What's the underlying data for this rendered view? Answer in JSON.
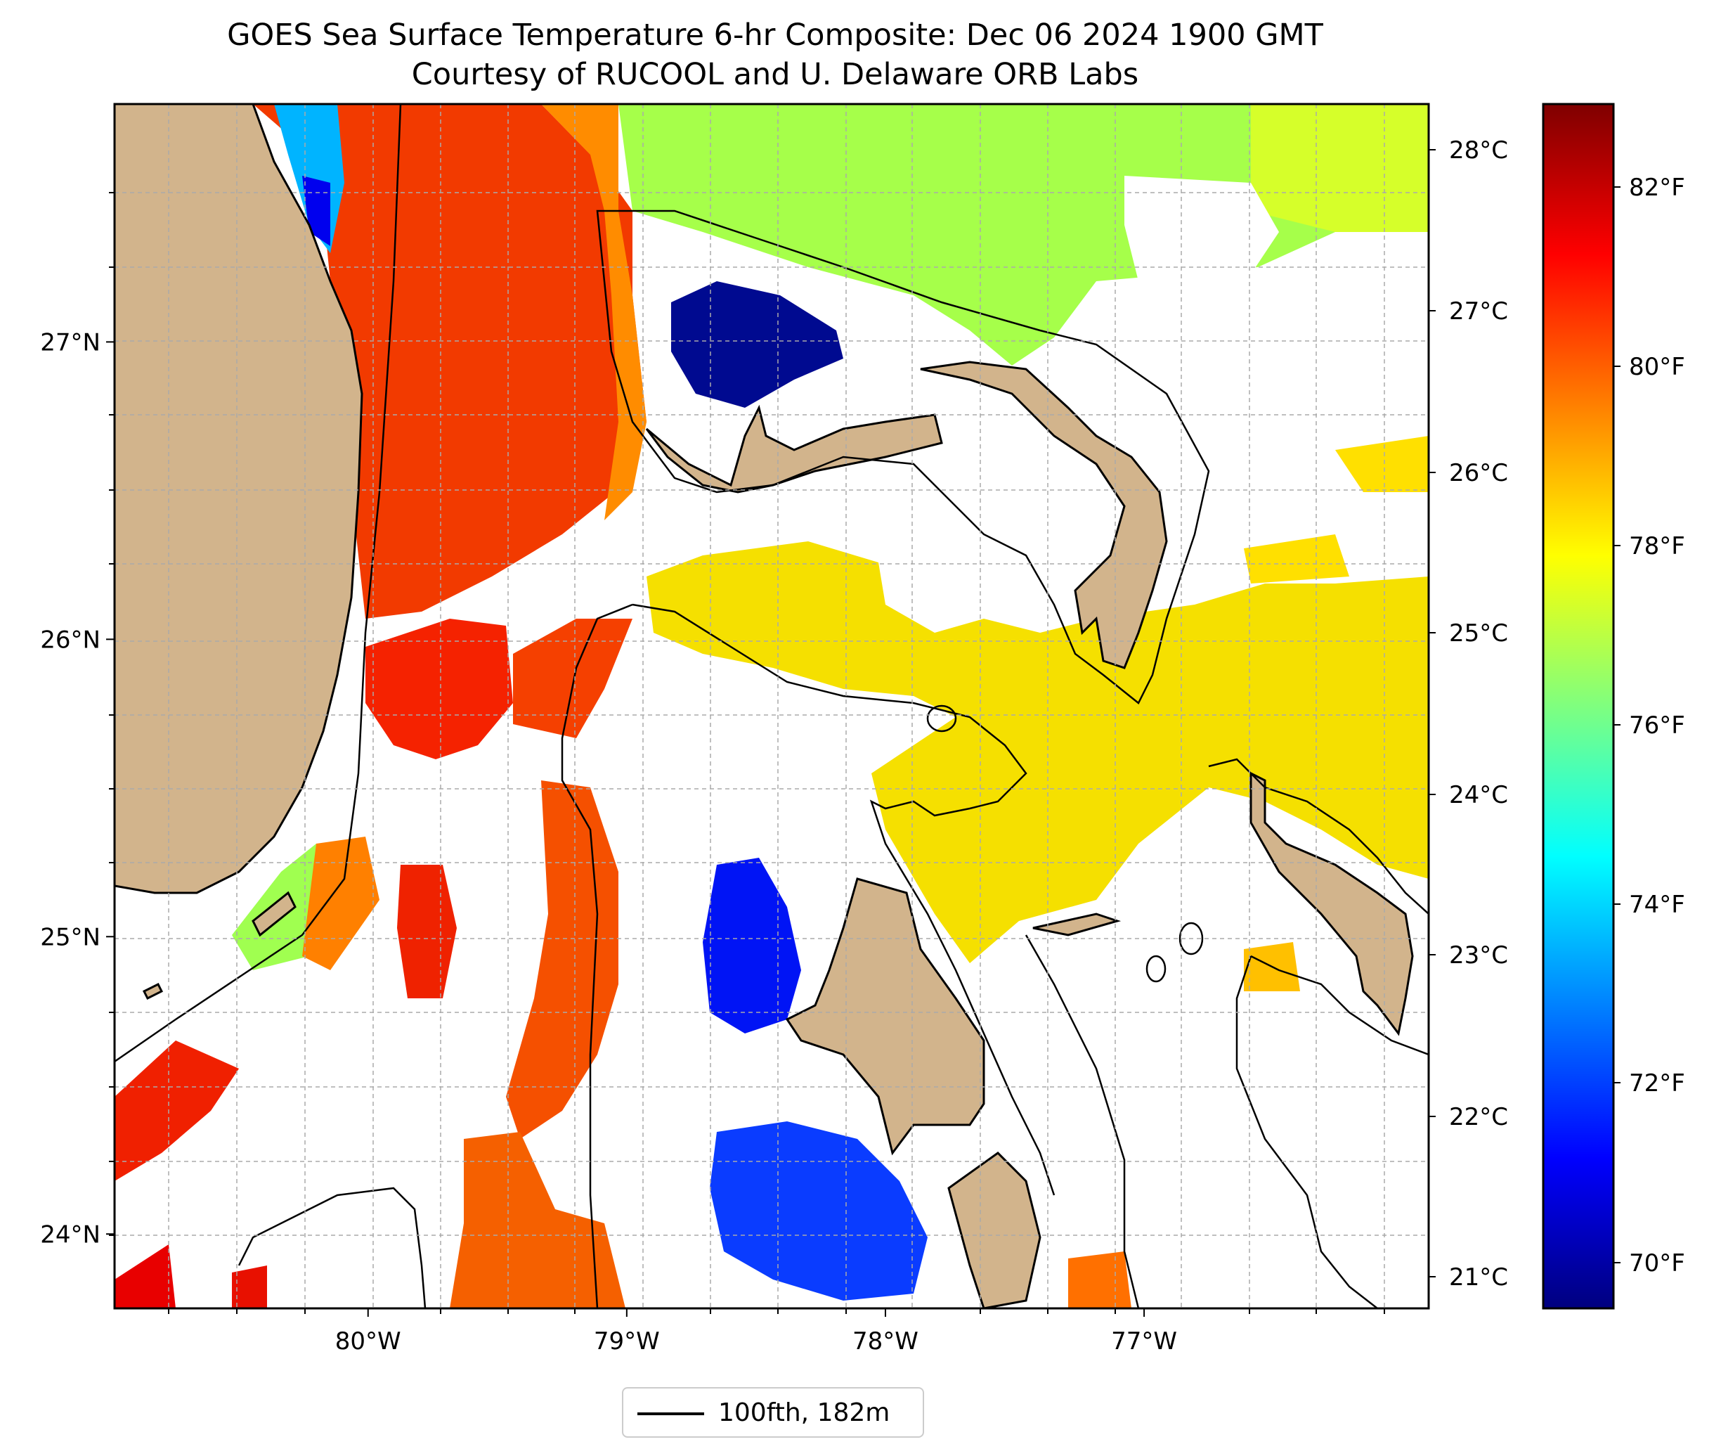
{
  "title": {
    "line1": "GOES Sea Surface Temperature 6-hr Composite: Dec 06 2024 1900 GMT",
    "line2": "Courtesy of RUCOOL and U. Delaware ORB Labs"
  },
  "map": {
    "lon_range": [
      -80.98,
      -75.9
    ],
    "lat_range": [
      23.75,
      27.8
    ],
    "lon_ticks": [
      {
        "value": -80,
        "label": "80°W"
      },
      {
        "value": -79,
        "label": "79°W"
      },
      {
        "value": -78,
        "label": "78°W"
      },
      {
        "value": -77,
        "label": "77°W"
      }
    ],
    "lat_ticks": [
      {
        "value": 24,
        "label": "24°N"
      },
      {
        "value": 25,
        "label": "25°N"
      },
      {
        "value": 26,
        "label": "26°N"
      },
      {
        "value": 27,
        "label": "27°N"
      }
    ],
    "gridlines": "dashed",
    "land_color": "#d2b48c",
    "no_data_color": "#ffffff",
    "legend": {
      "label": "100fth, 182m",
      "placement": "bottom-center"
    }
  },
  "colorbar": {
    "colormap": "jet",
    "celsius_ticks": [
      "28°C",
      "27°C",
      "26°C",
      "25°C",
      "24°C",
      "23°C",
      "22°C",
      "21°C"
    ],
    "fahrenheit_ticks": [
      "82°F",
      "80°F",
      "78°F",
      "76°F",
      "74°F",
      "72°F",
      "70°F"
    ],
    "colors": [
      "#7f0000",
      "#ff0000",
      "#ff7f00",
      "#ffff00",
      "#7fff7f",
      "#00ffff",
      "#007fff",
      "#0000ff",
      "#00007f"
    ]
  }
}
